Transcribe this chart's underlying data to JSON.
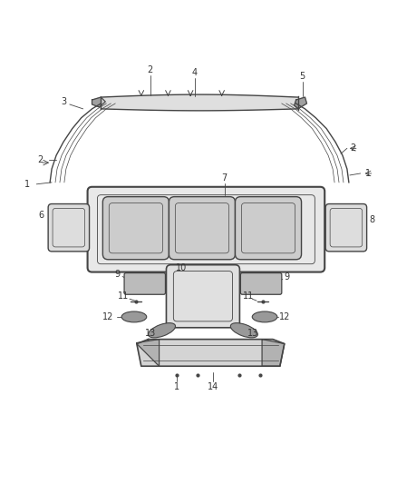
{
  "bg_color": "#ffffff",
  "line_color": "#444444",
  "text_color": "#333333",
  "fig_width": 4.38,
  "fig_height": 5.33,
  "dpi": 100
}
